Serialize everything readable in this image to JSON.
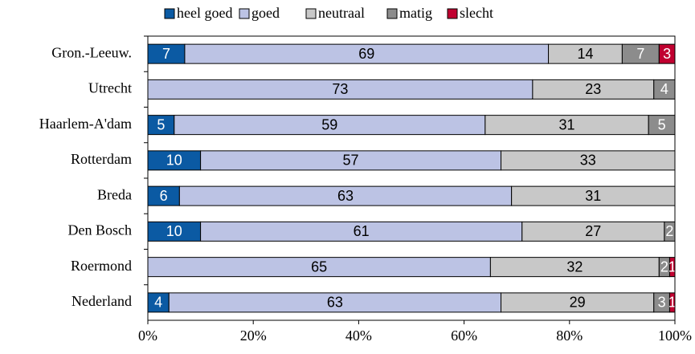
{
  "chart_data": {
    "type": "stacked_barh",
    "categories": [
      "Gron.-Leeuw.",
      "Utrecht",
      "Haarlem-A'dam",
      "Rotterdam",
      "Breda",
      "Den Bosch",
      "Roermond",
      "Nederland"
    ],
    "series": [
      {
        "name": "heel goed",
        "color": "#0b5aa3",
        "values": [
          7,
          null,
          5,
          10,
          6,
          10,
          null,
          4
        ]
      },
      {
        "name": "goed",
        "color": "#bcc3e4",
        "values": [
          69,
          73,
          59,
          57,
          63,
          61,
          65,
          63
        ]
      },
      {
        "name": "neutraal",
        "color": "#c8c8c8",
        "values": [
          14,
          23,
          31,
          33,
          31,
          27,
          32,
          29
        ]
      },
      {
        "name": "matig",
        "color": "#8c8c8c",
        "values": [
          7,
          4,
          5,
          null,
          null,
          2,
          2,
          3
        ]
      },
      {
        "name": "slecht",
        "color": "#c00030",
        "values": [
          3,
          null,
          null,
          null,
          null,
          null,
          1,
          1
        ]
      }
    ],
    "xlim": [
      0,
      100
    ],
    "xticks": [
      {
        "value": 0,
        "label": "0%"
      },
      {
        "value": 20,
        "label": "20%"
      },
      {
        "value": 40,
        "label": "40%"
      },
      {
        "value": 60,
        "label": "60%"
      },
      {
        "value": 80,
        "label": "80%"
      },
      {
        "value": 100,
        "label": "100%"
      }
    ],
    "legend": "top"
  }
}
